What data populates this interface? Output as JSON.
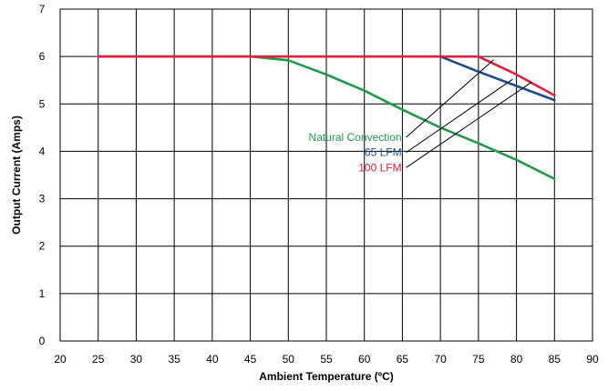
{
  "chart_data": {
    "type": "line",
    "title": "",
    "xlabel": "Ambient Temperature (ºC)",
    "ylabel": "Output Current (Amps)",
    "xlim": [
      20,
      90
    ],
    "ylim": [
      0,
      7
    ],
    "x_ticks": [
      "20",
      "25",
      "30",
      "35",
      "40",
      "45",
      "50",
      "55",
      "60",
      "65",
      "70",
      "75",
      "80",
      "85",
      "90"
    ],
    "y_ticks": [
      "0",
      "1",
      "2",
      "3",
      "4",
      "5",
      "6",
      "7"
    ],
    "grid": true,
    "series": [
      {
        "name": "Natural Convection",
        "color": "#1f9a4a",
        "x": [
          25,
          45,
          50,
          55,
          60,
          65,
          70,
          75,
          80,
          85
        ],
        "y": [
          6.0,
          6.0,
          5.92,
          5.62,
          5.28,
          4.88,
          4.5,
          4.17,
          3.82,
          3.42
        ]
      },
      {
        "name": "65 LFM",
        "color": "#1c4f8a",
        "x": [
          25,
          70,
          75,
          80,
          85
        ],
        "y": [
          6.0,
          6.0,
          5.68,
          5.38,
          5.08
        ]
      },
      {
        "name": "100 LFM",
        "color": "#e0203c",
        "x": [
          25,
          75,
          80,
          85
        ],
        "y": [
          6.0,
          6.0,
          5.62,
          5.18
        ]
      }
    ],
    "annotations": [
      {
        "text": "Natural Convection",
        "series": 0,
        "label_at": [
          64.9,
          4.22
        ],
        "target": [
          77,
          5.93
        ]
      },
      {
        "text": "65 LFM",
        "series": 1,
        "label_at": [
          64.9,
          3.9
        ],
        "target": [
          79.5,
          5.52
        ]
      },
      {
        "text": "100 LFM",
        "series": 2,
        "label_at": [
          64.9,
          3.58
        ],
        "target": [
          82,
          5.46
        ]
      }
    ]
  }
}
